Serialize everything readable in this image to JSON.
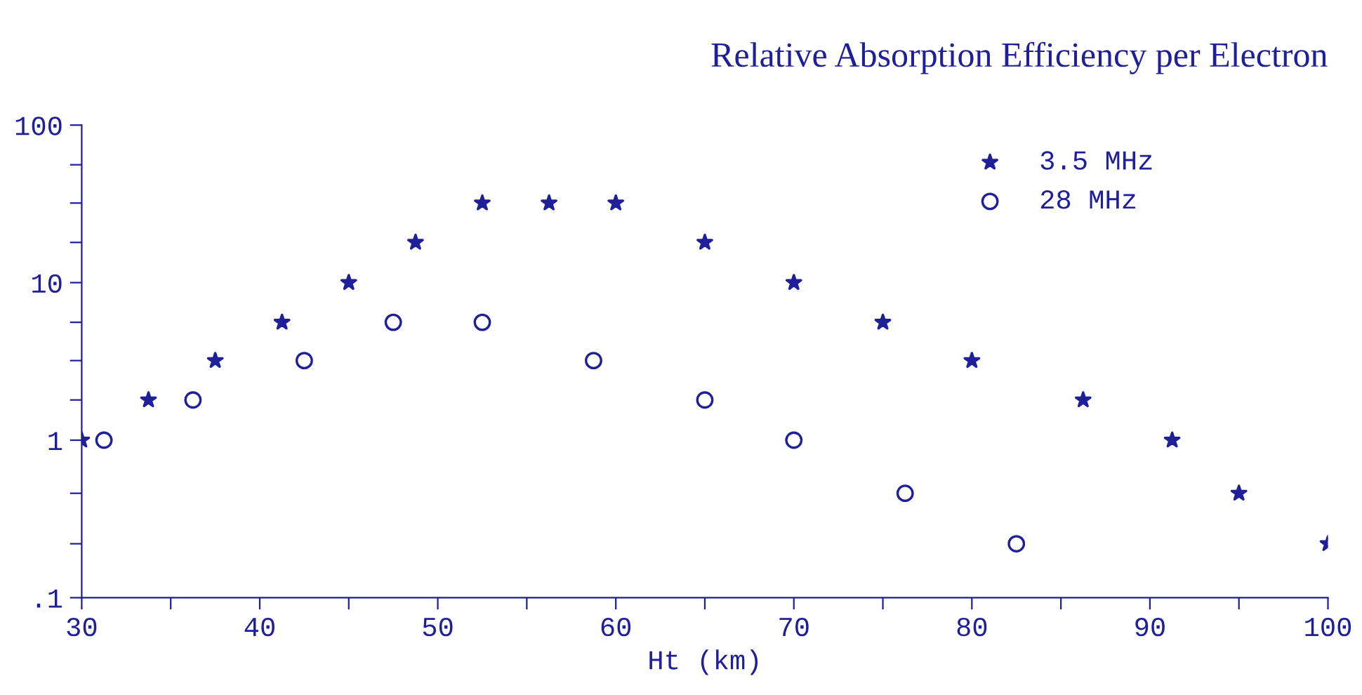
{
  "chart_data": {
    "type": "scatter",
    "title": "Relative Absorption Efficiency per Electron",
    "xlabel": "Ht (km)",
    "log": "y",
    "grid": false,
    "legend": "top right",
    "xlim": [
      30,
      100
    ],
    "xticks": [
      30,
      {
        "value": 35,
        "label": null
      },
      40,
      {
        "value": 45,
        "label": null
      },
      50,
      {
        "value": 55,
        "label": null
      },
      60,
      {
        "value": 65,
        "label": null
      },
      70,
      {
        "value": 75,
        "label": null
      },
      80,
      {
        "value": 85,
        "label": null
      },
      90,
      {
        "value": 95,
        "label": null
      },
      100
    ],
    "ylim": [
      0.1,
      100
    ],
    "yticks": [
      {
        "value": 0.1,
        "label": ".1"
      },
      {
        "value": 0.22,
        "label": null
      },
      {
        "value": 0.46,
        "label": null
      },
      1,
      {
        "value": 1.8,
        "label": null
      },
      {
        "value": 3.2,
        "label": null
      },
      {
        "value": 5.6,
        "label": null
      },
      10,
      {
        "value": 18,
        "label": null
      },
      {
        "value": 32,
        "label": null
      },
      {
        "value": 56,
        "label": null
      },
      100
    ],
    "series": [
      {
        "name": "3.5 MHz",
        "color": "#1f1f99",
        "marker": "star",
        "x": [
          30,
          33.75,
          37.5,
          41.25,
          45,
          48.75,
          52.5,
          56.25,
          60,
          65,
          70,
          75,
          80,
          86.25,
          91.25,
          95,
          100
        ],
        "values": [
          1,
          1.8,
          3.2,
          5.6,
          10,
          18,
          32,
          32,
          32,
          18,
          10,
          5.6,
          3.2,
          1.8,
          1,
          0.46,
          0.22
        ]
      },
      {
        "name": "28 MHz",
        "color": "#1f1f99",
        "marker": "circle",
        "x": [
          31.25,
          36.25,
          42.5,
          47.5,
          52.5,
          58.75,
          65,
          70,
          76.25,
          82.5
        ],
        "values": [
          1,
          1.8,
          3.2,
          5.6,
          5.6,
          3.2,
          1.8,
          1,
          0.46,
          0.22
        ]
      }
    ]
  }
}
